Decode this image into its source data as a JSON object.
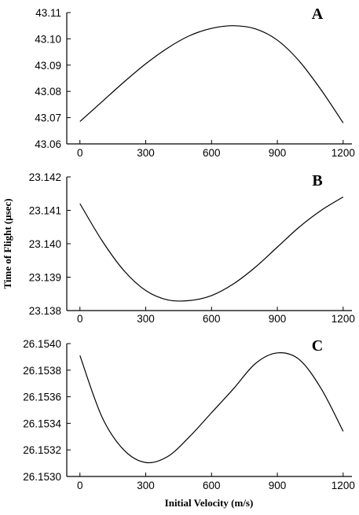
{
  "chart_data": {
    "type": "line",
    "ylabel": "Time of Flight (μsec)",
    "xlabel": "Initial Velocity (m/s)",
    "panels": [
      {
        "label": "A",
        "xticks": [
          0,
          300,
          600,
          900,
          1200
        ],
        "yticks": [
          "43.06",
          "43.07",
          "43.08",
          "43.09",
          "43.10",
          "43.11"
        ],
        "xlim": [
          -60,
          1240
        ],
        "ylim": [
          43.06,
          43.11
        ],
        "x": [
          0,
          100,
          200,
          300,
          400,
          500,
          600,
          700,
          800,
          900,
          1000,
          1100,
          1200
        ],
        "y": [
          43.0685,
          43.076,
          43.0835,
          43.0905,
          43.0965,
          43.1012,
          43.104,
          43.105,
          43.1038,
          43.0995,
          43.0915,
          43.0805,
          43.068
        ]
      },
      {
        "label": "B",
        "xticks": [
          0,
          300,
          600,
          900,
          1200
        ],
        "yticks": [
          "23.138",
          "23.139",
          "23.140",
          "23.141",
          "23.142"
        ],
        "xlim": [
          -60,
          1240
        ],
        "ylim": [
          23.138,
          23.142
        ],
        "x": [
          0,
          100,
          200,
          300,
          400,
          500,
          600,
          700,
          800,
          900,
          1000,
          1100,
          1200
        ],
        "y": [
          23.1412,
          23.1401,
          23.1392,
          23.1386,
          23.13832,
          23.1383,
          23.13845,
          23.1388,
          23.1393,
          23.1399,
          23.1405,
          23.141,
          23.1414
        ]
      },
      {
        "label": "C",
        "xticks": [
          0,
          300,
          600,
          900,
          1200
        ],
        "yticks": [
          "26.1530",
          "26.1532",
          "26.1534",
          "26.1536",
          "26.1538",
          "26.1540"
        ],
        "xlim": [
          -60,
          1240
        ],
        "ylim": [
          26.153,
          26.154
        ],
        "x": [
          0,
          100,
          200,
          300,
          400,
          500,
          600,
          700,
          800,
          900,
          1000,
          1100,
          1200
        ],
        "y": [
          26.15391,
          26.15345,
          26.1532,
          26.153105,
          26.15315,
          26.1533,
          26.15348,
          26.15366,
          26.15385,
          26.15393,
          26.15388,
          26.15366,
          26.15334
        ]
      }
    ]
  }
}
